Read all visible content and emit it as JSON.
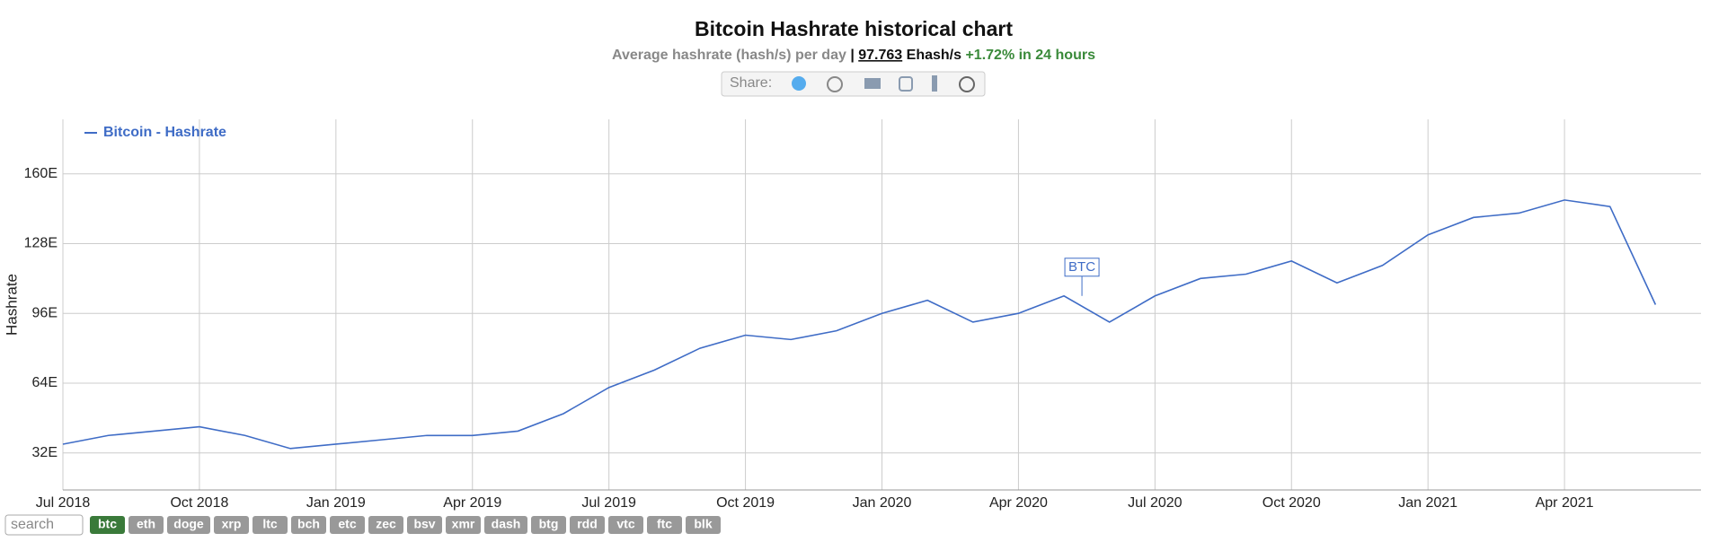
{
  "header": {
    "title": "Bitcoin Hashrate historical chart",
    "subtitle": "Average hashrate (hash/s) per day",
    "separator": "|",
    "current_value": "97.763",
    "unit": "Ehash/s",
    "change": "+1.72% in 24 hours",
    "share_label": "Share:"
  },
  "chart_data": {
    "type": "line",
    "y_label": "Hashrate",
    "annotation": "BTC",
    "x": [
      "2018-07",
      "2018-08",
      "2018-09",
      "2018-10",
      "2018-11",
      "2018-12",
      "2019-01",
      "2019-02",
      "2019-03",
      "2019-04",
      "2019-05",
      "2019-06",
      "2019-07",
      "2019-08",
      "2019-09",
      "2019-10",
      "2019-11",
      "2019-12",
      "2020-01",
      "2020-02",
      "2020-03",
      "2020-04",
      "2020-05",
      "2020-06",
      "2020-07",
      "2020-08",
      "2020-09",
      "2020-10",
      "2020-11",
      "2020-12",
      "2021-01",
      "2021-02",
      "2021-03",
      "2021-04",
      "2021-05",
      "2021-06"
    ],
    "series": [
      {
        "name": "Bitcoin - Hashrate",
        "color": "#3f6cc6",
        "values": [
          36,
          40,
          42,
          44,
          40,
          34,
          36,
          38,
          40,
          40,
          42,
          50,
          62,
          70,
          80,
          86,
          84,
          88,
          96,
          102,
          92,
          96,
          104,
          92,
          104,
          112,
          114,
          120,
          110,
          118,
          132,
          140,
          142,
          148,
          145,
          100
        ]
      }
    ],
    "xlim": [
      "2018-07",
      "2021-07"
    ],
    "xticks": [
      {
        "value": "2018-07",
        "label": "Jul 2018"
      },
      {
        "value": "2018-10",
        "label": "Oct 2018"
      },
      {
        "value": "2019-01",
        "label": "Jan 2019"
      },
      {
        "value": "2019-04",
        "label": "Apr 2019"
      },
      {
        "value": "2019-07",
        "label": "Jul 2019"
      },
      {
        "value": "2019-10",
        "label": "Oct 2019"
      },
      {
        "value": "2020-01",
        "label": "Jan 2020"
      },
      {
        "value": "2020-04",
        "label": "Apr 2020"
      },
      {
        "value": "2020-07",
        "label": "Jul 2020"
      },
      {
        "value": "2020-10",
        "label": "Oct 2020"
      },
      {
        "value": "2021-01",
        "label": "Jan 2021"
      },
      {
        "value": "2021-04",
        "label": "Apr 2021"
      }
    ],
    "ylim": [
      15,
      185
    ],
    "yticks": [
      {
        "value": 32,
        "label": "32E"
      },
      {
        "value": 64,
        "label": "64E"
      },
      {
        "value": 96,
        "label": "96E"
      },
      {
        "value": 128,
        "label": "128E"
      },
      {
        "value": 160,
        "label": "160E"
      }
    ],
    "grid": true,
    "legend": "top-left"
  },
  "footer": {
    "search_placeholder": "search",
    "coins": [
      "btc",
      "eth",
      "doge",
      "xrp",
      "ltc",
      "bch",
      "etc",
      "zec",
      "bsv",
      "xmr",
      "dash",
      "btg",
      "rdd",
      "vtc",
      "ftc",
      "blk"
    ],
    "active": "btc"
  }
}
